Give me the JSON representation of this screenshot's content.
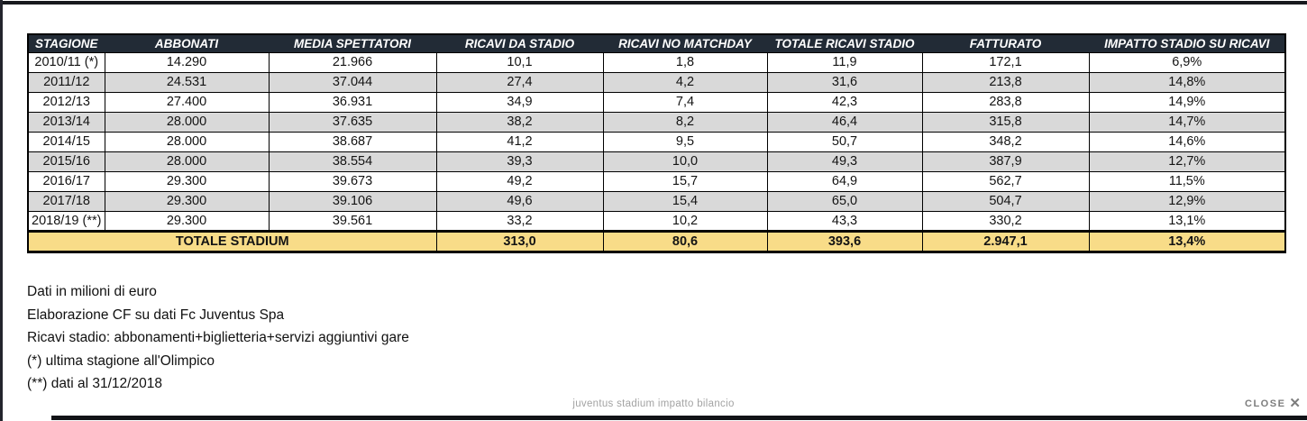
{
  "colors": {
    "header_bg": "#222b36",
    "header_text": "#ffffff",
    "row_alt_bg": "#d9d9d9",
    "total_row_bg": "#f8dc88",
    "border": "#000000",
    "caption_text": "#a3a3a3",
    "close_text": "#7d7d7d"
  },
  "table": {
    "headers": [
      "STAGIONE",
      "ABBONATI",
      "MEDIA SPETTATORI",
      "RICAVI DA STADIO",
      "RICAVI NO MATCHDAY",
      "TOTALE RICAVI STADIO",
      "FATTURATO",
      "IMPATTO STADIO SU RICAVI"
    ],
    "rows": [
      [
        "2010/11 (*)",
        "14.290",
        "21.966",
        "10,1",
        "1,8",
        "11,9",
        "172,1",
        "6,9%"
      ],
      [
        "2011/12",
        "24.531",
        "37.044",
        "27,4",
        "4,2",
        "31,6",
        "213,8",
        "14,8%"
      ],
      [
        "2012/13",
        "27.400",
        "36.931",
        "34,9",
        "7,4",
        "42,3",
        "283,8",
        "14,9%"
      ],
      [
        "2013/14",
        "28.000",
        "37.635",
        "38,2",
        "8,2",
        "46,4",
        "315,8",
        "14,7%"
      ],
      [
        "2014/15",
        "28.000",
        "38.687",
        "41,2",
        "9,5",
        "50,7",
        "348,2",
        "14,6%"
      ],
      [
        "2015/16",
        "28.000",
        "38.554",
        "39,3",
        "10,0",
        "49,3",
        "387,9",
        "12,7%"
      ],
      [
        "2016/17",
        "29.300",
        "39.673",
        "49,2",
        "15,7",
        "64,9",
        "562,7",
        "11,5%"
      ],
      [
        "2017/18",
        "29.300",
        "39.106",
        "49,6",
        "15,4",
        "65,0",
        "504,7",
        "12,9%"
      ],
      [
        "2018/19 (**)",
        "29.300",
        "39.561",
        "33,2",
        "10,2",
        "43,3",
        "330,2",
        "13,1%"
      ]
    ],
    "total_row": {
      "label": "TOTALE STADIUM",
      "values": [
        "313,0",
        "80,6",
        "393,6",
        "2.947,1",
        "13,4%"
      ]
    }
  },
  "notes": {
    "lines": [
      "Dati in milioni di euro",
      "Elaborazione CF su dati Fc Juventus Spa",
      "Ricavi stadio: abbonamenti+biglietteria+servizi aggiuntivi gare",
      "(*) ultima stagione all'Olimpico",
      "(**) dati al 31/12/2018"
    ]
  },
  "caption": "juventus stadium impatto bilancio",
  "close": {
    "label": "CLOSE",
    "icon": "✕"
  }
}
